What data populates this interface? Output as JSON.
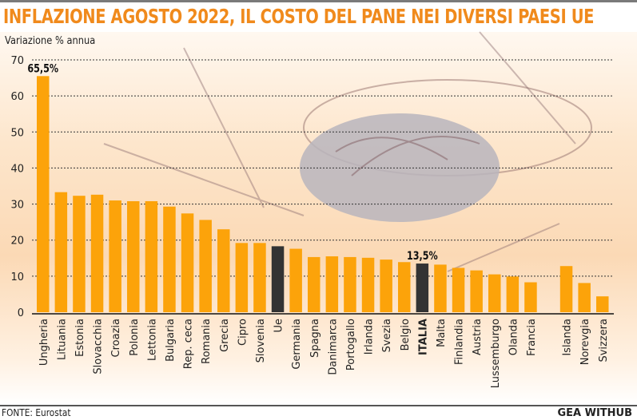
{
  "header": {
    "title": "INFLAZIONE AGOSTO 2022, IL COSTO DEL PANE NEI DIVERSI PAESI UE"
  },
  "footer": {
    "source": "FONTE: Eurostat",
    "brand": "GEA WITHUB"
  },
  "colors": {
    "title": "#f08a1c",
    "bar": "#fca30a",
    "highlight_bar": "#333333"
  },
  "chart_data": {
    "type": "bar",
    "title": "INFLAZIONE AGOSTO 2022, IL COSTO DEL PANE NEI DIVERSI PAESI UE",
    "ylabel": "Variazione % annua",
    "xlabel": "",
    "ylim": [
      0,
      70
    ],
    "yticks": [
      0,
      10,
      20,
      30,
      40,
      50,
      60,
      70
    ],
    "grid": true,
    "categories": [
      "Ungheria",
      "Lituania",
      "Estonia",
      "Slovacchia",
      "Croazia",
      "Polonia",
      "Lettonia",
      "Bulgaria",
      "Rep. ceca",
      "Romania",
      "Grecia",
      "Cipro",
      "Slovenia",
      "Ue",
      "Germania",
      "Spagna",
      "Danimarca",
      "Portogallo",
      "Irlanda",
      "Svezia",
      "Belgio",
      "ITALIA",
      "Malta",
      "Finlandia",
      "Austria",
      "Lussemburgo",
      "Olanda",
      "Francia",
      "Islanda",
      "Norevgia",
      "Svizzera"
    ],
    "values": [
      65.5,
      33.3,
      32.3,
      32.6,
      31.0,
      30.8,
      30.8,
      29.3,
      27.4,
      25.6,
      23.0,
      19.2,
      19.2,
      18.3,
      17.6,
      15.3,
      15.5,
      15.3,
      15.1,
      14.6,
      13.9,
      13.5,
      13.2,
      12.3,
      11.6,
      10.5,
      9.9,
      8.3,
      12.8,
      8.1,
      4.4
    ],
    "highlighted": [
      "Ue",
      "ITALIA"
    ],
    "group_gap_before": [
      "Islanda"
    ],
    "annotations": [
      {
        "category": "Ungheria",
        "text": "65,5%"
      },
      {
        "category": "ITALIA",
        "text": "13,5%"
      }
    ]
  }
}
